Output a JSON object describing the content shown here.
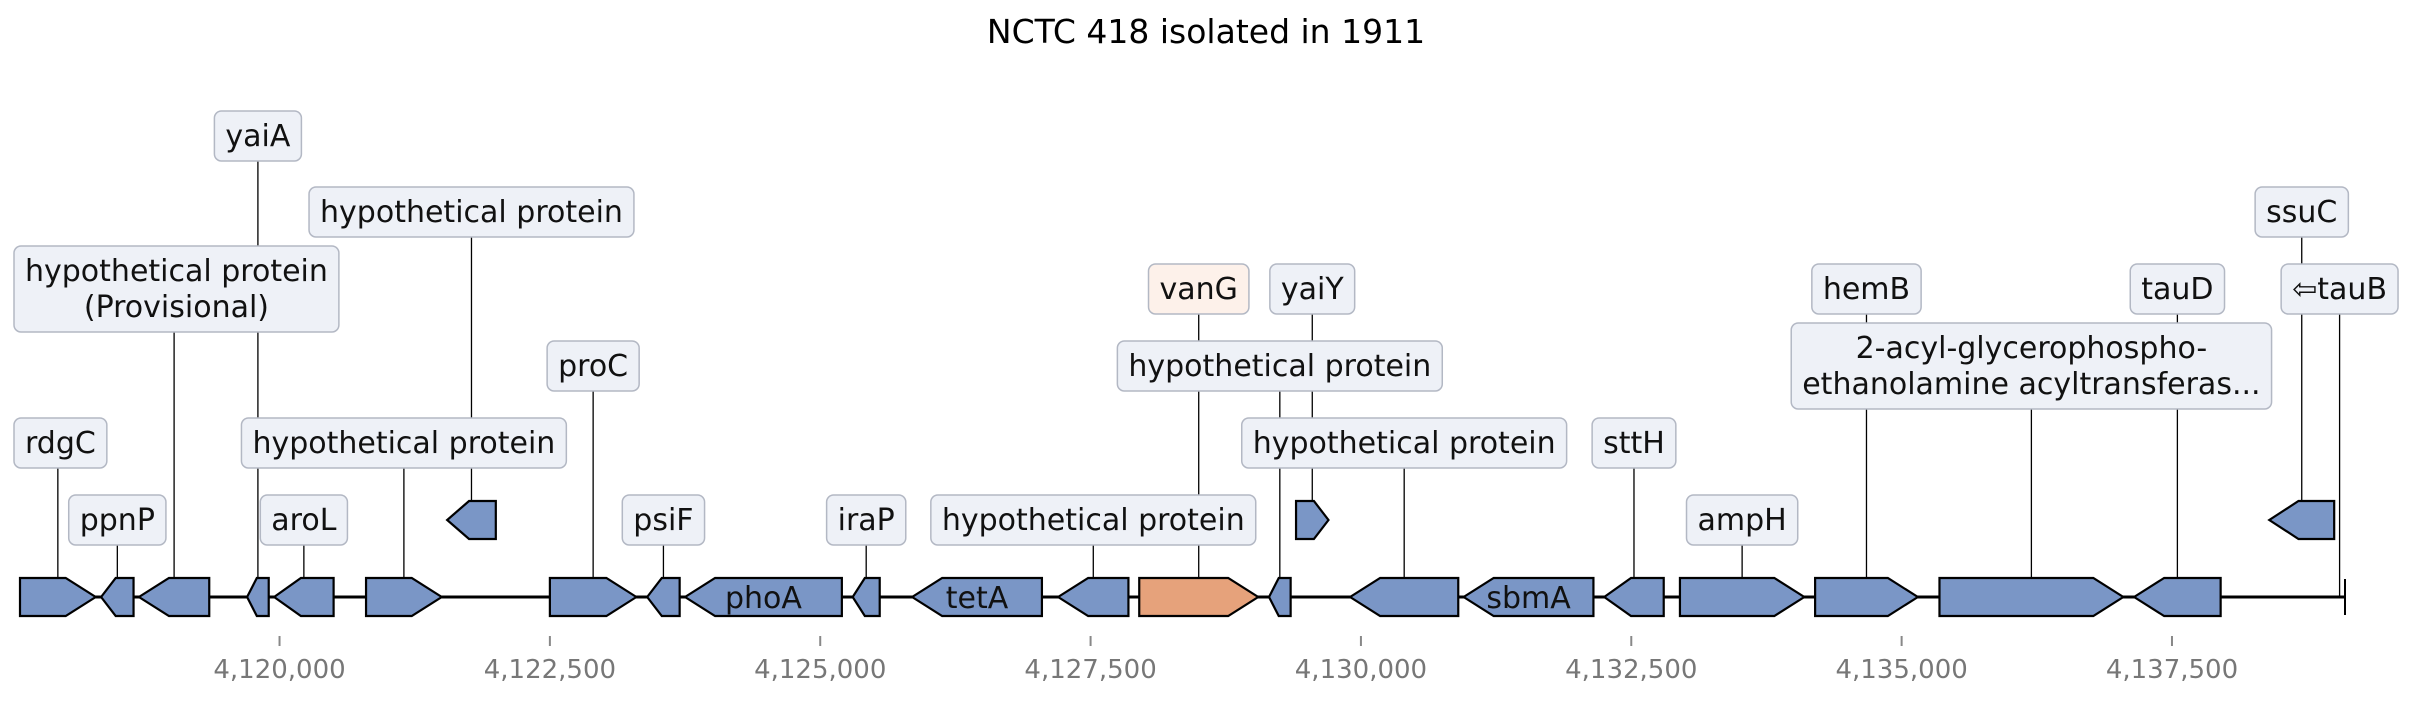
{
  "title": "NCTC 418 isolated in 1911",
  "colors": {
    "gene_fill": "#7a96c6",
    "highlight_fill": "#e6a27b",
    "label_bg": "#eef1f7",
    "highlight_label_bg": "#fdf1ea",
    "label_border": "#b3b8c4",
    "axis_text": "#777777"
  },
  "axis": {
    "start": 4117600,
    "end": 4139100,
    "ticks": [
      {
        "value": 4120000,
        "label": "4,120,000"
      },
      {
        "value": 4122500,
        "label": "4,122,500"
      },
      {
        "value": 4125000,
        "label": "4,125,000"
      },
      {
        "value": 4127500,
        "label": "4,127,500"
      },
      {
        "value": 4130000,
        "label": "4,130,000"
      },
      {
        "value": 4132500,
        "label": "4,132,500"
      },
      {
        "value": 4135000,
        "label": "4,135,000"
      },
      {
        "value": 4137500,
        "label": "4,137,500"
      }
    ]
  },
  "genes": [
    {
      "start": 4117600,
      "end": 4118300,
      "strand": 1,
      "label": "rdgC",
      "level": 1
    },
    {
      "start": 4118350,
      "end": 4118650,
      "strand": -1,
      "label": "ppnP",
      "level": 0
    },
    {
      "start": 4118700,
      "end": 4119350,
      "strand": -1,
      "label": "hypothetical protein\n(Provisional)",
      "level": 3
    },
    {
      "start": 4119700,
      "end": 4119900,
      "strand": -1,
      "label": "yaiA",
      "level": 5
    },
    {
      "start": 4119950,
      "end": 4120500,
      "strand": -1,
      "label": "aroL",
      "level": 0
    },
    {
      "start": 4120800,
      "end": 4121500,
      "strand": 1,
      "label": "hypothetical protein",
      "level": 1
    },
    {
      "start": 4121550,
      "end": 4122000,
      "strand": -1,
      "label": "hypothetical protein",
      "level": 4,
      "row": "upper"
    },
    {
      "start": 4122500,
      "end": 4123300,
      "strand": 1,
      "label": "proC",
      "level": 2
    },
    {
      "start": 4123400,
      "end": 4123700,
      "strand": -1,
      "label": "psiF",
      "level": 0
    },
    {
      "start": 4123750,
      "end": 4125200,
      "strand": -1,
      "label": "",
      "name": "phoA"
    },
    {
      "start": 4125300,
      "end": 4125550,
      "strand": -1,
      "label": "iraP",
      "level": 0
    },
    {
      "start": 4125850,
      "end": 4127050,
      "strand": -1,
      "label": "",
      "name": "tetA"
    },
    {
      "start": 4127200,
      "end": 4127850,
      "strand": -1,
      "label": "hypothetical protein",
      "level": 0
    },
    {
      "start": 4127950,
      "end": 4129050,
      "strand": 1,
      "label": "vanG",
      "level": 3,
      "highlight": true
    },
    {
      "start": 4129150,
      "end": 4129350,
      "strand": -1,
      "label": "hypothetical protein",
      "level": 2
    },
    {
      "start": 4129400,
      "end": 4129700,
      "strand": 1,
      "label": "yaiY",
      "level": 3,
      "row": "upper"
    },
    {
      "start": 4129900,
      "end": 4130900,
      "strand": -1,
      "label": "hypothetical protein",
      "level": 1
    },
    {
      "start": 4130950,
      "end": 4132150,
      "strand": -1,
      "label": "",
      "name": "sbmA"
    },
    {
      "start": 4132250,
      "end": 4132800,
      "strand": -1,
      "label": "sttH",
      "level": 1
    },
    {
      "start": 4132950,
      "end": 4134100,
      "strand": 1,
      "label": "ampH",
      "level": 0
    },
    {
      "start": 4134200,
      "end": 4135150,
      "strand": 1,
      "label": "hemB",
      "level": 3
    },
    {
      "start": 4135350,
      "end": 4137050,
      "strand": 1,
      "label": "2-acyl-glycerophospho-\nethanolamine acyltransferas...",
      "level": 2
    },
    {
      "start": 4137150,
      "end": 4137950,
      "strand": -1,
      "label": "tauD",
      "level": 3
    },
    {
      "start": 4138400,
      "end": 4139000,
      "strand": -1,
      "label": "ssuC",
      "level": 4,
      "row": "upper"
    },
    {
      "start": 4139000,
      "end": 4139100,
      "strand": -1,
      "label": "⇦tauB",
      "level": 3
    }
  ]
}
